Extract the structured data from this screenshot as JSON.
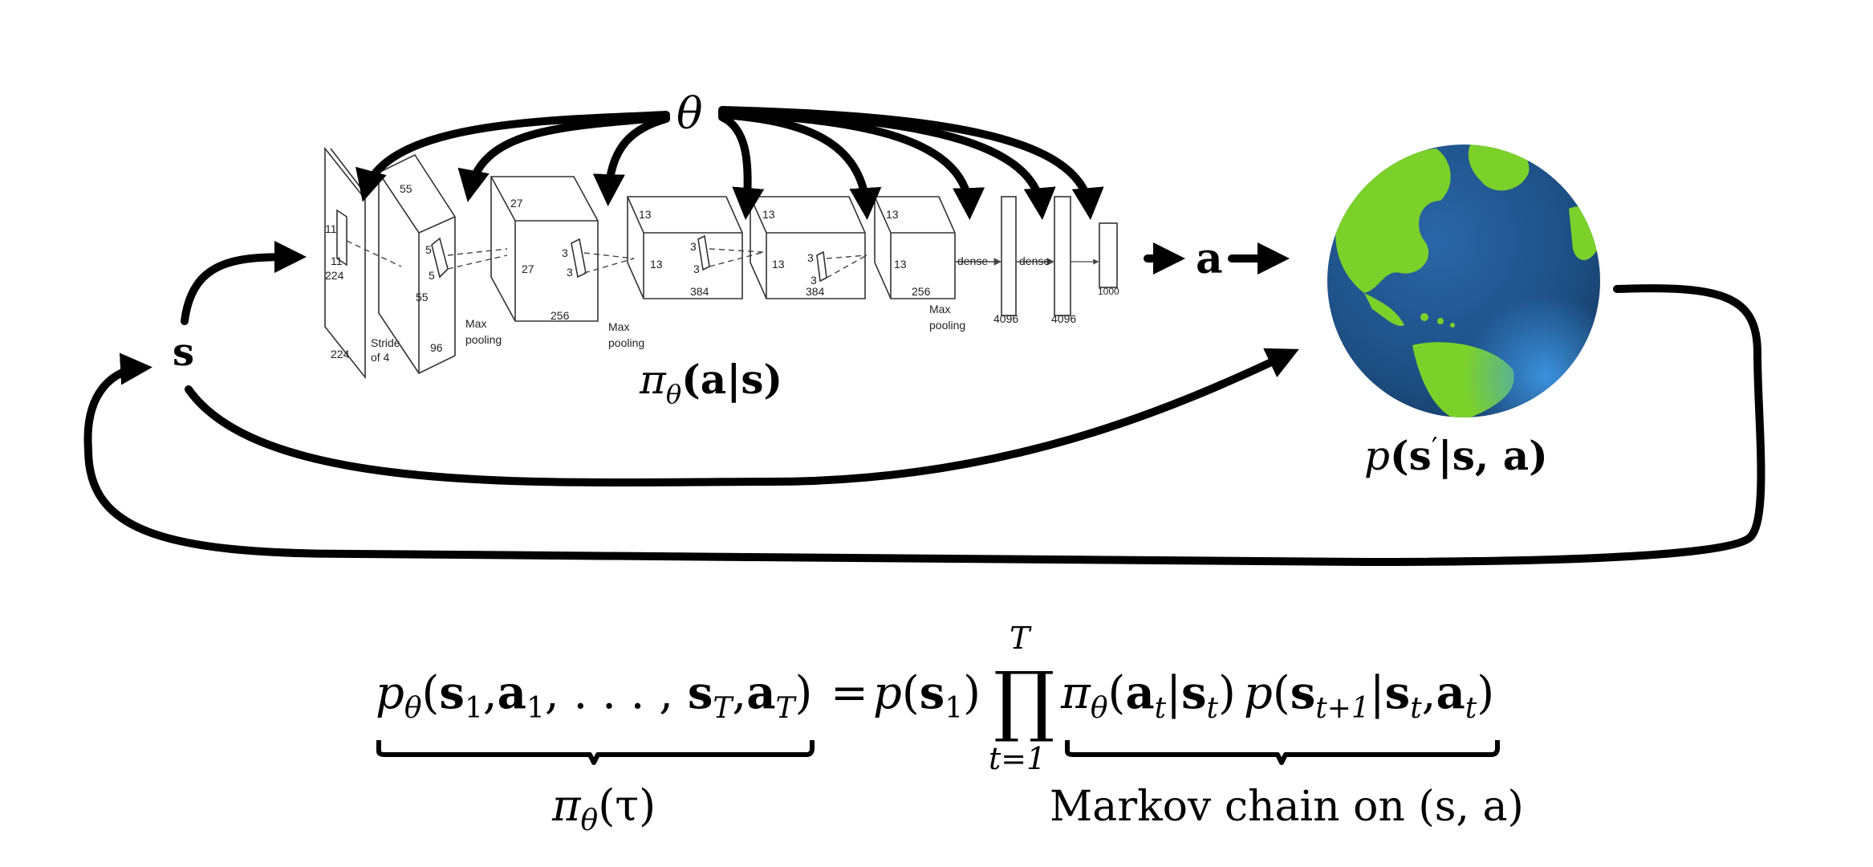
{
  "diagram": {
    "theta": "θ",
    "state": "s",
    "action": "a",
    "policy_label": {
      "pi": "π",
      "sub": "θ",
      "arg": "(a|s)"
    },
    "dynamics_label": {
      "p": "p",
      "arg1": "(s",
      "prime": "′",
      "arg2": "|s, a)"
    },
    "cnn": {
      "labels": {
        "input_h": "11",
        "input_w": "11",
        "input_side_a": "224",
        "input_side_b": "224",
        "stride": "Stride",
        "of4": "of 4",
        "c1_top": "55",
        "c1_side": "55",
        "c1_depth": "96",
        "c1_k_a": "5",
        "c1_k_b": "5",
        "pool1_a": "Max",
        "pool1_b": "pooling",
        "c2_top": "27",
        "c2_side": "27",
        "c2_depth": "256",
        "c2_k_a": "3",
        "c2_k_b": "3",
        "pool2_a": "Max",
        "pool2_b": "pooling",
        "c3_top": "13",
        "c3_side": "13",
        "c3_depth": "384",
        "c3_k_a": "3",
        "c3_k_b": "3",
        "c4_top": "13",
        "c4_side": "13",
        "c4_depth": "384",
        "c4_k_a": "3",
        "c4_k_b": "3",
        "c5_top": "13",
        "c5_side": "13",
        "c5_depth": "256",
        "pool3_a": "Max",
        "pool3_b": "pooling",
        "dense1": "dense",
        "dense2": "dense",
        "fc1": "4096",
        "fc2": "4096",
        "fc3": "1000"
      }
    },
    "globe": {
      "ocean": "#1d4e82",
      "land": "#7bd12a",
      "icon": "earth-globe-icon"
    }
  },
  "equation": {
    "lhs": {
      "p": "p",
      "sub": "θ",
      "open": "(",
      "s1": "s",
      "s1sub": "1",
      "c1": ",",
      "a1": "a",
      "a1sub": "1",
      "dots": ", . . . , ",
      "sT": "s",
      "sTsub": "T",
      "c2": ",",
      "aT": "a",
      "aTsub": "T",
      "close": ")"
    },
    "eq": "=",
    "p_s1": {
      "p": "p",
      "open": "(",
      "s": "s",
      "sub": "1",
      "close": ")"
    },
    "prod": "∏",
    "prod_upper": "T",
    "prod_lower": "t=1",
    "pi_term": {
      "pi": "π",
      "sub": "θ",
      "open": "(",
      "a": "a",
      "asub": "t",
      "bar": "|",
      "s": "s",
      "ssub": "t",
      "close": ")"
    },
    "p_term": {
      "p": "p",
      "open": "(",
      "s": "s",
      "ssub": "t+1",
      "bar": "|",
      "s2": "s",
      "s2sub": "t",
      "c": ",",
      "a": "a",
      "asub": "t",
      "close": ")"
    },
    "under_left": {
      "pi": "π",
      "sub": "θ",
      "arg": "(τ)"
    },
    "under_right": "Markov chain on (s, a)"
  }
}
